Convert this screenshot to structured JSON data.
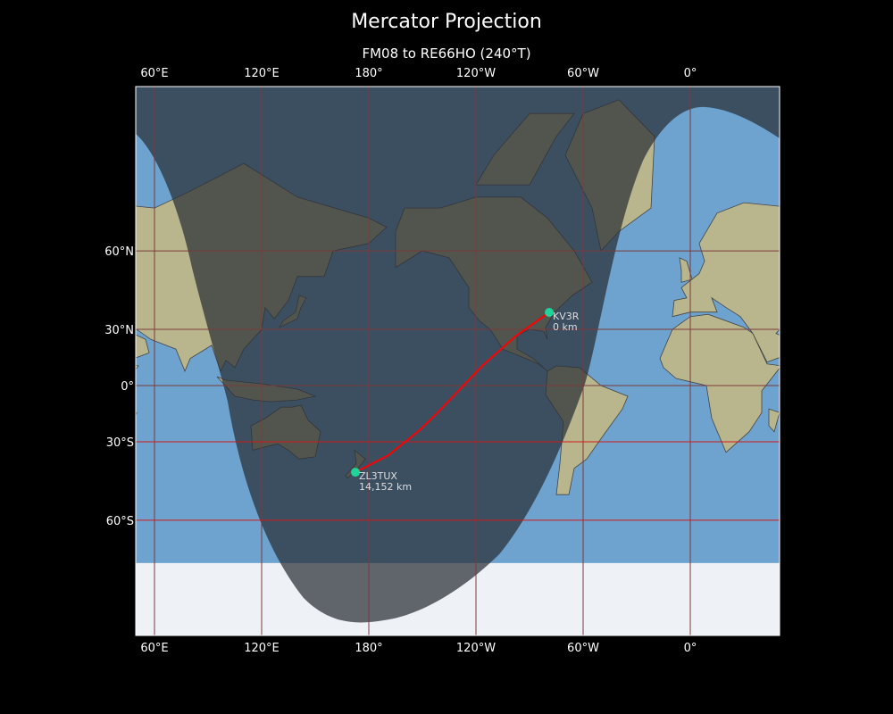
{
  "figure": {
    "title": "Mercator Projection",
    "subtitle": "FM08 to RE66HO (240°T)"
  },
  "axes": {
    "lon_ticks": [
      {
        "lon": 60,
        "label": "60°E"
      },
      {
        "lon": 120,
        "label": "120°E"
      },
      {
        "lon": 180,
        "label": "180°"
      },
      {
        "lon": -120,
        "label": "120°W"
      },
      {
        "lon": -60,
        "label": "60°W"
      },
      {
        "lon": 0,
        "label": "0°"
      }
    ],
    "lat_ticks": [
      {
        "lat": 60,
        "label": "60°N"
      },
      {
        "lat": 30,
        "label": "30°N"
      },
      {
        "lat": 0,
        "label": "0°"
      },
      {
        "lat": -30,
        "label": "30°S"
      },
      {
        "lat": -60,
        "label": "60°S"
      }
    ]
  },
  "stations": [
    {
      "call": "KV3R",
      "distance": "0 km",
      "lon": -79,
      "lat": 37.9
    },
    {
      "call": "ZL3TUX",
      "distance": "14,152 km",
      "lon": 172.5,
      "lat": -43.6
    }
  ],
  "path": [
    [
      -79,
      37.9
    ],
    [
      -98,
      26.5
    ],
    [
      -116.5,
      11
    ],
    [
      -141.5,
      -15
    ],
    [
      -151.5,
      -24.2
    ],
    [
      -169,
      -36.3
    ],
    [
      -187.5,
      -43.6
    ]
  ],
  "colors": {
    "path": "#ff0000",
    "station_marker": "#1fd39a",
    "ocean": "#6ea3cf",
    "land": "#b9b68e",
    "ice": "#eef1f6",
    "night_shade": "#2a2f36"
  }
}
